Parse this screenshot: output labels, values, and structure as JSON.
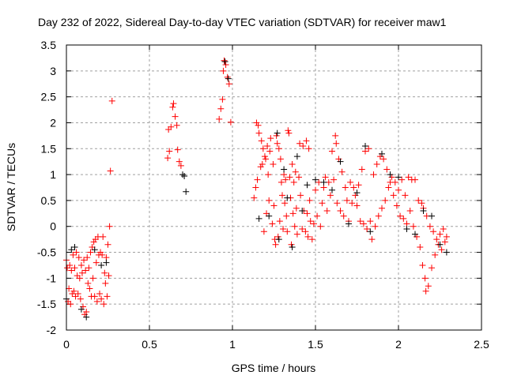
{
  "chart_data": {
    "type": "scatter",
    "title": "Day 232 of 2022, Sidereal Day-to-day VTEC variation (SDTVAR) for receiver maw1",
    "xlabel": "GPS time / hours",
    "ylabel": "SDTVAR / TECUs",
    "xlim": [
      0,
      2.5
    ],
    "ylim": [
      -2,
      3.5
    ],
    "xticks": [
      "0",
      "0.5",
      "1",
      "1.5",
      "2",
      "2.5"
    ],
    "yticks": [
      "-2",
      "-1.5",
      "-1",
      "-0.5",
      "0",
      "0.5",
      "1",
      "1.5",
      "2",
      "2.5",
      "3",
      "3.5"
    ],
    "grid": true,
    "marker": "plus",
    "series": [
      {
        "name": "red",
        "color": "#ff0000",
        "points": [
          [
            0.0,
            -0.65
          ],
          [
            0.005,
            -0.8
          ],
          [
            0.01,
            -1.45
          ],
          [
            0.015,
            -1.2
          ],
          [
            0.02,
            -0.75
          ],
          [
            0.025,
            -1.5
          ],
          [
            0.03,
            -0.85
          ],
          [
            0.035,
            -1.3
          ],
          [
            0.04,
            -0.55
          ],
          [
            0.045,
            -1.25
          ],
          [
            0.05,
            -0.8
          ],
          [
            0.055,
            -1.35
          ],
          [
            0.06,
            -0.5
          ],
          [
            0.065,
            -0.95
          ],
          [
            0.07,
            -1.3
          ],
          [
            0.075,
            -0.6
          ],
          [
            0.08,
            -1.0
          ],
          [
            0.085,
            -1.4
          ],
          [
            0.09,
            -0.75
          ],
          [
            0.095,
            -0.9
          ],
          [
            0.1,
            -1.55
          ],
          [
            0.105,
            -0.65
          ],
          [
            0.11,
            -1.7
          ],
          [
            0.115,
            -0.85
          ],
          [
            0.12,
            -1.65
          ],
          [
            0.125,
            -0.6
          ],
          [
            0.13,
            -1.1
          ],
          [
            0.135,
            -0.8
          ],
          [
            0.14,
            -1.2
          ],
          [
            0.145,
            -0.5
          ],
          [
            0.15,
            -1.35
          ],
          [
            0.155,
            -0.4
          ],
          [
            0.16,
            -1.0
          ],
          [
            0.165,
            -0.3
          ],
          [
            0.17,
            -1.35
          ],
          [
            0.175,
            -0.25
          ],
          [
            0.18,
            -0.7
          ],
          [
            0.185,
            -1.45
          ],
          [
            0.19,
            -0.2
          ],
          [
            0.195,
            -0.55
          ],
          [
            0.2,
            -1.3
          ],
          [
            0.205,
            -0.5
          ],
          [
            0.21,
            -1.4
          ],
          [
            0.215,
            -0.55
          ],
          [
            0.22,
            -0.2
          ],
          [
            0.225,
            -1.5
          ],
          [
            0.23,
            -0.9
          ],
          [
            0.235,
            -1.1
          ],
          [
            0.24,
            -0.6
          ],
          [
            0.245,
            -1.35
          ],
          [
            0.25,
            -0.35
          ],
          [
            0.255,
            -0.95
          ],
          [
            0.26,
            0.0
          ],
          [
            0.265,
            1.07
          ],
          [
            0.275,
            2.42
          ],
          [
            0.61,
            1.32
          ],
          [
            0.615,
            1.87
          ],
          [
            0.62,
            1.45
          ],
          [
            0.63,
            1.92
          ],
          [
            0.64,
            2.3
          ],
          [
            0.645,
            2.37
          ],
          [
            0.655,
            2.12
          ],
          [
            0.665,
            1.95
          ],
          [
            0.67,
            1.48
          ],
          [
            0.68,
            1.25
          ],
          [
            0.69,
            1.17
          ],
          [
            0.92,
            2.07
          ],
          [
            0.93,
            2.27
          ],
          [
            0.94,
            2.45
          ],
          [
            0.945,
            3.0
          ],
          [
            0.95,
            3.2
          ],
          [
            0.96,
            3.12
          ],
          [
            0.97,
            2.88
          ],
          [
            0.98,
            2.75
          ],
          [
            0.99,
            2.01
          ],
          [
            1.13,
            0.55
          ],
          [
            1.14,
            0.75
          ],
          [
            1.145,
            2.0
          ],
          [
            1.15,
            0.9
          ],
          [
            1.155,
            1.95
          ],
          [
            1.16,
            1.8
          ],
          [
            1.17,
            1.15
          ],
          [
            1.175,
            1.65
          ],
          [
            1.18,
            1.2
          ],
          [
            1.185,
            1.5
          ],
          [
            1.19,
            -0.1
          ],
          [
            1.195,
            1.35
          ],
          [
            1.2,
            1.3
          ],
          [
            1.205,
            0.25
          ],
          [
            1.21,
            1.55
          ],
          [
            1.215,
            1.0
          ],
          [
            1.22,
            0.5
          ],
          [
            1.225,
            1.45
          ],
          [
            1.23,
            1.7
          ],
          [
            1.24,
            0.05
          ],
          [
            1.245,
            1.2
          ],
          [
            1.25,
            0.4
          ],
          [
            1.255,
            -0.25
          ],
          [
            1.26,
            -0.35
          ],
          [
            1.265,
            1.75
          ],
          [
            1.27,
            1.6
          ],
          [
            1.275,
            -0.2
          ],
          [
            1.28,
            1.5
          ],
          [
            1.285,
            0.1
          ],
          [
            1.29,
            1.3
          ],
          [
            1.295,
            0.85
          ],
          [
            1.3,
            0.6
          ],
          [
            1.305,
            -0.05
          ],
          [
            1.31,
            1.0
          ],
          [
            1.315,
            0.45
          ],
          [
            1.32,
            0.9
          ],
          [
            1.325,
            0.2
          ],
          [
            1.33,
            -0.1
          ],
          [
            1.335,
            1.85
          ],
          [
            1.34,
            1.8
          ],
          [
            1.345,
            0.95
          ],
          [
            1.35,
            0.55
          ],
          [
            1.355,
            -0.35
          ],
          [
            1.36,
            1.2
          ],
          [
            1.365,
            0.25
          ],
          [
            1.37,
            0.85
          ],
          [
            1.375,
            0.0
          ],
          [
            1.38,
            1.05
          ],
          [
            1.385,
            0.35
          ],
          [
            1.39,
            -0.15
          ],
          [
            1.4,
            0.95
          ],
          [
            1.405,
            1.6
          ],
          [
            1.41,
            0.6
          ],
          [
            1.42,
            -0.05
          ],
          [
            1.425,
            1.55
          ],
          [
            1.43,
            0.3
          ],
          [
            1.44,
            -0.1
          ],
          [
            1.445,
            1.65
          ],
          [
            1.45,
            0.25
          ],
          [
            1.455,
            -0.2
          ],
          [
            1.46,
            1.5
          ],
          [
            1.465,
            0.5
          ],
          [
            1.47,
            0.1
          ],
          [
            1.48,
            -0.25
          ],
          [
            1.49,
            0.05
          ],
          [
            1.5,
            0.7
          ],
          [
            1.51,
            0.2
          ],
          [
            1.52,
            0.85
          ],
          [
            1.53,
            0.0
          ],
          [
            1.54,
            0.45
          ],
          [
            1.55,
            0.75
          ],
          [
            1.56,
            0.95
          ],
          [
            1.57,
            0.3
          ],
          [
            1.58,
            0.85
          ],
          [
            1.59,
            0.6
          ],
          [
            1.6,
            1.45
          ],
          [
            1.61,
            0.9
          ],
          [
            1.62,
            1.75
          ],
          [
            1.625,
            1.6
          ],
          [
            1.63,
            0.45
          ],
          [
            1.64,
            1.3
          ],
          [
            1.65,
            0.3
          ],
          [
            1.66,
            1.05
          ],
          [
            1.67,
            0.2
          ],
          [
            1.68,
            0.75
          ],
          [
            1.69,
            0.5
          ],
          [
            1.7,
            0.1
          ],
          [
            1.71,
            0.85
          ],
          [
            1.72,
            0.45
          ],
          [
            1.73,
            0.75
          ],
          [
            1.74,
            0.6
          ],
          [
            1.75,
            0.4
          ],
          [
            1.76,
            0.8
          ],
          [
            1.77,
            0.1
          ],
          [
            1.78,
            1.1
          ],
          [
            1.79,
            0.05
          ],
          [
            1.8,
            1.45
          ],
          [
            1.81,
            -0.05
          ],
          [
            1.82,
            1.5
          ],
          [
            1.83,
            0.1
          ],
          [
            1.84,
            -0.25
          ],
          [
            1.85,
            1.0
          ],
          [
            1.86,
            0.0
          ],
          [
            1.87,
            1.2
          ],
          [
            1.88,
            0.2
          ],
          [
            1.89,
            1.35
          ],
          [
            1.9,
            0.35
          ],
          [
            1.91,
            1.3
          ],
          [
            1.92,
            0.5
          ],
          [
            1.93,
            1.1
          ],
          [
            1.94,
            0.75
          ],
          [
            1.95,
            0.85
          ],
          [
            1.96,
            0.95
          ],
          [
            1.97,
            0.6
          ],
          [
            1.98,
            0.85
          ],
          [
            1.99,
            0.4
          ],
          [
            2.0,
            0.7
          ],
          [
            2.01,
            0.2
          ],
          [
            2.02,
            0.9
          ],
          [
            2.03,
            0.15
          ],
          [
            2.04,
            0.6
          ],
          [
            2.05,
            0.05
          ],
          [
            2.06,
            0.95
          ],
          [
            2.07,
            0.3
          ],
          [
            2.08,
            0.9
          ],
          [
            2.09,
            0.0
          ],
          [
            2.1,
            0.9
          ],
          [
            2.11,
            -0.2
          ],
          [
            2.12,
            0.5
          ],
          [
            2.13,
            -0.4
          ],
          [
            2.14,
            0.45
          ],
          [
            2.145,
            -0.75
          ],
          [
            2.15,
            0.35
          ],
          [
            2.16,
            -1.0
          ],
          [
            2.165,
            -1.25
          ],
          [
            2.17,
            0.2
          ],
          [
            2.18,
            -1.15
          ],
          [
            2.19,
            0.0
          ],
          [
            2.2,
            -0.8
          ],
          [
            2.21,
            -0.1
          ],
          [
            2.22,
            -0.55
          ],
          [
            2.23,
            -0.25
          ],
          [
            2.24,
            -0.35
          ],
          [
            2.25,
            -0.15
          ],
          [
            2.26,
            -0.45
          ],
          [
            2.27,
            -0.05
          ],
          [
            2.28,
            -0.3
          ],
          [
            2.29,
            -0.2
          ]
        ]
      },
      {
        "name": "black",
        "color": "#000000",
        "points": [
          [
            0.0,
            -1.4
          ],
          [
            0.03,
            -0.45
          ],
          [
            0.05,
            -0.4
          ],
          [
            0.09,
            -1.6
          ],
          [
            0.12,
            -1.75
          ],
          [
            0.17,
            -0.45
          ],
          [
            0.21,
            -0.75
          ],
          [
            0.24,
            -0.7
          ],
          [
            0.7,
            1.0
          ],
          [
            0.71,
            0.97
          ],
          [
            0.72,
            0.67
          ],
          [
            0.955,
            3.18
          ],
          [
            0.975,
            2.85
          ],
          [
            1.16,
            0.15
          ],
          [
            1.22,
            0.2
          ],
          [
            1.27,
            1.8
          ],
          [
            1.28,
            -0.25
          ],
          [
            1.31,
            1.1
          ],
          [
            1.33,
            0.55
          ],
          [
            1.36,
            -0.4
          ],
          [
            1.39,
            1.35
          ],
          [
            1.42,
            0.3
          ],
          [
            1.45,
            0.8
          ],
          [
            1.5,
            0.9
          ],
          [
            1.55,
            0.85
          ],
          [
            1.6,
            0.7
          ],
          [
            1.65,
            1.25
          ],
          [
            1.7,
            0.05
          ],
          [
            1.75,
            0.65
          ],
          [
            1.8,
            1.55
          ],
          [
            1.83,
            -0.1
          ],
          [
            1.9,
            1.4
          ],
          [
            1.95,
            1.0
          ],
          [
            2.0,
            0.95
          ],
          [
            2.05,
            -0.05
          ],
          [
            2.1,
            -0.15
          ],
          [
            2.15,
            0.3
          ],
          [
            2.2,
            0.2
          ],
          [
            2.25,
            -0.35
          ],
          [
            2.29,
            -0.5
          ]
        ]
      }
    ]
  }
}
